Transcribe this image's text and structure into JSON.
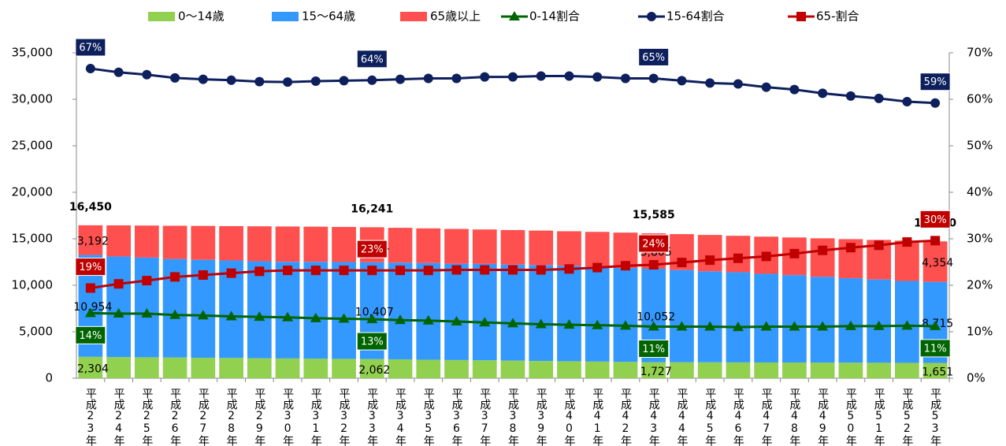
{
  "chart_data": {
    "type": "bar_line",
    "categories": [
      "平成23年",
      "平成24年",
      "平成25年",
      "平成26年",
      "平成27年",
      "平成28年",
      "平成29年",
      "平成30年",
      "平成31年",
      "平成32年",
      "平成33年",
      "平成34年",
      "平成35年",
      "平成36年",
      "平成37年",
      "平成38年",
      "平成39年",
      "平成40年",
      "平成41年",
      "平成42年",
      "平成43年",
      "平成44年",
      "平成45年",
      "平成46年",
      "平成47年",
      "平成48年",
      "平成49年",
      "平成50年",
      "平成51年",
      "平成52年",
      "平成53年"
    ],
    "series": [
      {
        "name": "0〜14歳",
        "type": "bar",
        "color": "#92d050",
        "values": [
          2304,
          2280,
          2255,
          2230,
          2205,
          2180,
          2155,
          2130,
          2110,
          2085,
          2062,
          2030,
          1995,
          1960,
          1930,
          1895,
          1860,
          1830,
          1795,
          1760,
          1727,
          1720,
          1712,
          1705,
          1697,
          1690,
          1682,
          1674,
          1666,
          1658,
          1651
        ],
        "value_labels": [
          "2,304",
          null,
          null,
          null,
          null,
          null,
          null,
          null,
          null,
          null,
          "2,062",
          null,
          null,
          null,
          null,
          null,
          null,
          null,
          null,
          null,
          "1,727",
          null,
          null,
          null,
          null,
          null,
          null,
          null,
          null,
          null,
          "1,651"
        ]
      },
      {
        "name": "15〜64歳",
        "type": "bar",
        "color": "#3399ff",
        "values": [
          10954,
          10818,
          10722,
          10594,
          10532,
          10487,
          10425,
          10396,
          10416,
          10413,
          10407,
          10404,
          10397,
          10359,
          10368,
          10329,
          10322,
          10277,
          10200,
          10101,
          10052,
          9920,
          9785,
          9698,
          9534,
          9402,
          9226,
          9081,
          8958,
          8806,
          8715
        ],
        "value_labels": [
          "10,954",
          null,
          null,
          null,
          null,
          null,
          null,
          null,
          null,
          null,
          "10,407",
          null,
          null,
          null,
          null,
          null,
          null,
          null,
          null,
          null,
          "10,052",
          null,
          null,
          null,
          null,
          null,
          null,
          null,
          null,
          null,
          "8,715"
        ]
      },
      {
        "name": "65歳以上",
        "type": "bar",
        "color": "#ff5050",
        "values": [
          3192,
          3342,
          3443,
          3576,
          3643,
          3693,
          3760,
          3794,
          3774,
          3772,
          3771,
          3746,
          3728,
          3741,
          3702,
          3716,
          3698,
          3703,
          3745,
          3799,
          3805,
          3860,
          3913,
          3917,
          3999,
          4048,
          4142,
          4205,
          4256,
          4336,
          4354
        ],
        "value_labels": [
          "3,192",
          null,
          null,
          null,
          null,
          null,
          null,
          null,
          null,
          null,
          "3,771",
          null,
          null,
          null,
          null,
          null,
          null,
          null,
          null,
          null,
          "3,805",
          null,
          null,
          null,
          null,
          null,
          null,
          null,
          null,
          null,
          "4,354"
        ]
      },
      {
        "name": "0-14割合",
        "type": "line",
        "axis": "y2",
        "marker": "triangle",
        "color": "#006400",
        "values": [
          14.0,
          13.9,
          13.9,
          13.6,
          13.5,
          13.3,
          13.2,
          13.1,
          12.9,
          12.8,
          12.7,
          12.5,
          12.4,
          12.2,
          12.0,
          11.8,
          11.6,
          11.5,
          11.4,
          11.3,
          11.1,
          11.1,
          11.1,
          11.0,
          11.1,
          11.1,
          11.1,
          11.2,
          11.2,
          11.3,
          11.2
        ],
        "value_labels": [
          "14%",
          null,
          null,
          null,
          null,
          null,
          null,
          null,
          null,
          null,
          "13%",
          null,
          null,
          null,
          null,
          null,
          null,
          null,
          null,
          null,
          "11%",
          null,
          null,
          null,
          null,
          null,
          null,
          null,
          null,
          null,
          "11%"
        ]
      },
      {
        "name": "15-64割合",
        "type": "line",
        "axis": "y2",
        "marker": "circle",
        "color": "#0d1f5c",
        "values": [
          66.6,
          65.8,
          65.3,
          64.6,
          64.3,
          64.1,
          63.8,
          63.7,
          63.9,
          64.0,
          64.1,
          64.3,
          64.5,
          64.5,
          64.8,
          64.8,
          65.0,
          65.0,
          64.8,
          64.5,
          64.5,
          64.0,
          63.5,
          63.3,
          62.6,
          62.1,
          61.3,
          60.7,
          60.2,
          59.5,
          59.2
        ],
        "value_labels": [
          "67%",
          null,
          null,
          null,
          null,
          null,
          null,
          null,
          null,
          null,
          "64%",
          null,
          null,
          null,
          null,
          null,
          null,
          null,
          null,
          null,
          "65%",
          null,
          null,
          null,
          null,
          null,
          null,
          null,
          null,
          null,
          "59%"
        ]
      },
      {
        "name": "65-割合",
        "type": "line",
        "axis": "y2",
        "marker": "square",
        "color": "#c00000",
        "values": [
          19.4,
          20.3,
          21.0,
          21.8,
          22.2,
          22.6,
          23.0,
          23.2,
          23.2,
          23.2,
          23.2,
          23.2,
          23.2,
          23.3,
          23.3,
          23.3,
          23.3,
          23.5,
          23.8,
          24.2,
          24.4,
          24.9,
          25.4,
          25.8,
          26.2,
          26.8,
          27.5,
          28.1,
          28.6,
          29.3,
          29.6
        ],
        "value_labels": [
          "19%",
          null,
          null,
          null,
          null,
          null,
          null,
          null,
          null,
          null,
          "23%",
          null,
          null,
          null,
          null,
          null,
          null,
          null,
          null,
          null,
          "24%",
          null,
          null,
          null,
          null,
          null,
          null,
          null,
          null,
          null,
          "30%"
        ]
      }
    ],
    "totals": [
      16450,
      null,
      null,
      null,
      null,
      null,
      null,
      null,
      null,
      null,
      16241,
      null,
      null,
      null,
      null,
      null,
      null,
      null,
      null,
      null,
      15585,
      null,
      null,
      null,
      null,
      null,
      null,
      null,
      null,
      null,
      14720
    ],
    "total_labels": [
      "16,450",
      null,
      null,
      null,
      null,
      null,
      null,
      null,
      null,
      null,
      "16,241",
      null,
      null,
      null,
      null,
      null,
      null,
      null,
      null,
      null,
      "15,585",
      null,
      null,
      null,
      null,
      null,
      null,
      null,
      null,
      null,
      "14,720"
    ],
    "ylim": [
      0,
      35000
    ],
    "yticks": [
      0,
      {
        "value": 5000,
        "label": "5,000"
      },
      {
        "value": 10000,
        "label": "10,000"
      },
      {
        "value": 15000,
        "label": "15,000"
      },
      {
        "value": 20000,
        "label": "20,000"
      },
      {
        "value": 25000,
        "label": "25,000"
      },
      {
        "value": 30000,
        "label": "30,000"
      },
      {
        "value": 35000,
        "label": "35,000"
      }
    ],
    "y2lim": [
      0,
      70
    ],
    "y2ticks": [
      {
        "value": 0,
        "label": "0%"
      },
      {
        "value": 10,
        "label": "10%"
      },
      {
        "value": 20,
        "label": "20%"
      },
      {
        "value": 30,
        "label": "30%"
      },
      {
        "value": 40,
        "label": "40%"
      },
      {
        "value": 50,
        "label": "50%"
      },
      {
        "value": 60,
        "label": "60%"
      },
      {
        "value": 70,
        "label": "70%"
      }
    ],
    "legend": "top"
  }
}
